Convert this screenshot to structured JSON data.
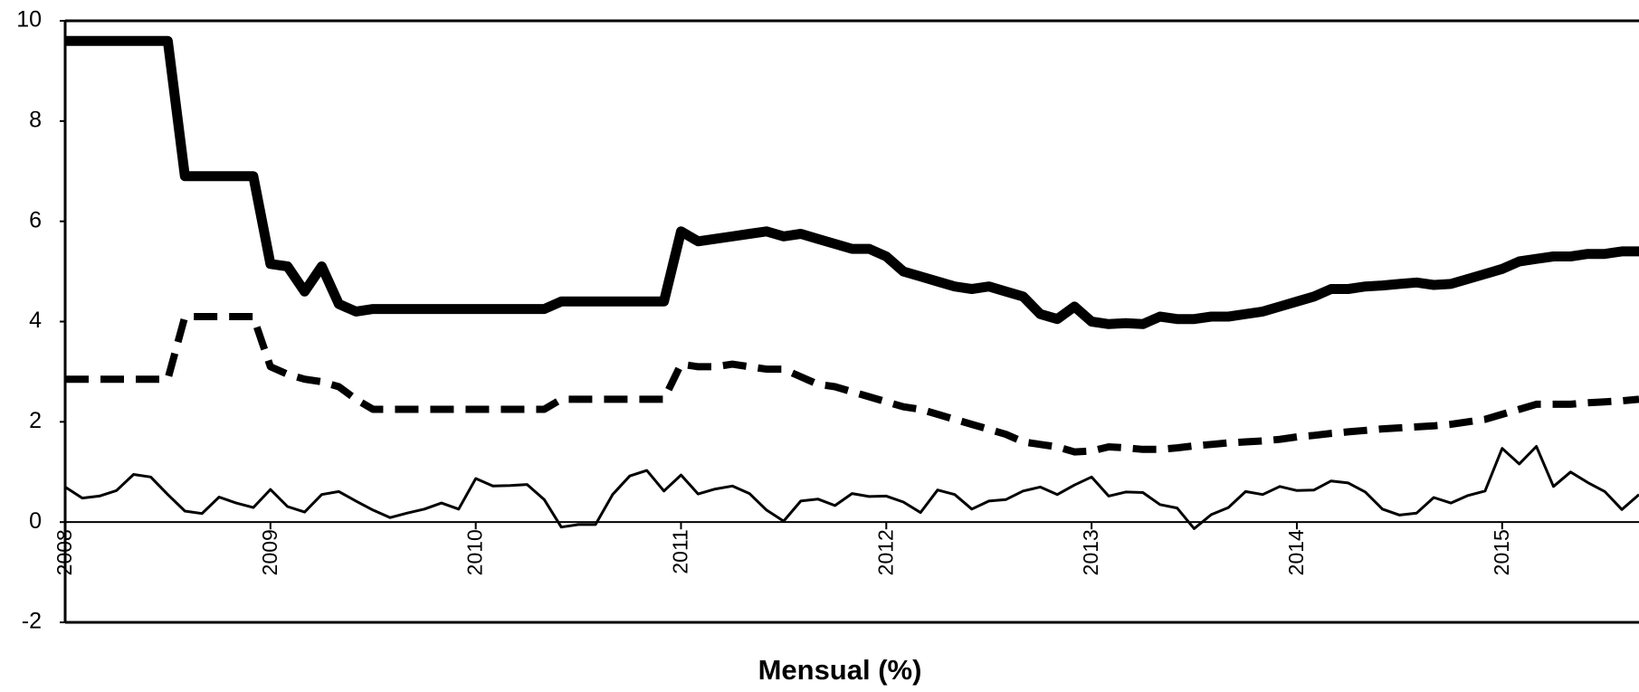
{
  "chart_data": {
    "type": "line",
    "x_label": "Mensual (%)",
    "x": [
      0,
      1,
      2,
      3,
      4,
      5,
      6,
      7,
      8,
      9,
      10,
      11,
      12,
      13,
      14,
      15,
      16,
      17,
      18,
      19,
      20,
      21,
      22,
      23,
      24,
      25,
      26,
      27,
      28,
      29,
      30,
      31,
      32,
      33,
      34,
      35,
      36,
      37,
      38,
      39,
      40,
      41,
      42,
      43,
      44,
      45,
      46,
      47,
      48,
      49,
      50,
      51,
      52,
      53,
      54,
      55,
      56,
      57,
      58,
      59,
      60,
      61,
      62,
      63,
      64,
      65,
      66,
      67,
      68,
      69,
      70,
      71,
      72,
      73,
      74,
      75,
      76,
      77,
      78,
      79,
      80,
      81,
      82,
      83,
      84,
      85,
      86,
      87,
      88,
      89,
      90,
      91,
      92
    ],
    "xlim": [
      0,
      92
    ],
    "xticks": [
      {
        "value": 0,
        "label": "2008"
      },
      {
        "value": 12,
        "label": "2009"
      },
      {
        "value": 24,
        "label": "2010"
      },
      {
        "value": 36,
        "label": "2011"
      },
      {
        "value": 48,
        "label": "2012"
      },
      {
        "value": 60,
        "label": "2013"
      },
      {
        "value": 72,
        "label": "2014"
      },
      {
        "value": 84,
        "label": "2015"
      }
    ],
    "ylim": [
      -2,
      10
    ],
    "yticks": [
      -2,
      0,
      2,
      4,
      6,
      8,
      10
    ],
    "series": [
      {
        "color": "#000000",
        "style": "thick",
        "values": [
          9.6,
          9.6,
          9.6,
          9.6,
          9.6,
          9.6,
          9.6,
          6.9,
          6.9,
          6.9,
          6.9,
          6.9,
          5.15,
          5.1,
          4.6,
          5.1,
          4.35,
          4.2,
          4.25,
          4.25,
          4.25,
          4.25,
          4.25,
          4.25,
          4.25,
          4.25,
          4.25,
          4.25,
          4.25,
          4.4,
          4.4,
          4.4,
          4.4,
          4.4,
          4.4,
          4.4,
          5.8,
          5.6,
          5.65,
          5.7,
          5.75,
          5.8,
          5.7,
          5.75,
          5.65,
          5.55,
          5.45,
          5.45,
          5.3,
          5.0,
          4.9,
          4.8,
          4.7,
          4.65,
          4.7,
          4.6,
          4.5,
          4.15,
          4.05,
          4.3,
          4.0,
          3.95,
          3.97,
          3.95,
          4.1,
          4.05,
          4.05,
          4.1,
          4.1,
          4.15,
          4.2,
          4.3,
          4.4,
          4.5,
          4.65,
          4.65,
          4.7,
          4.72,
          4.75,
          4.78,
          4.73,
          4.75,
          4.85,
          4.95,
          5.05,
          5.2,
          5.25,
          5.3,
          5.3,
          5.35,
          5.35,
          5.4,
          5.4
        ]
      },
      {
        "color": "#000000",
        "style": "dashed",
        "values": [
          2.85,
          2.85,
          2.85,
          2.85,
          2.85,
          2.85,
          2.85,
          4.1,
          4.1,
          4.1,
          4.1,
          4.1,
          3.1,
          2.95,
          2.85,
          2.8,
          2.7,
          2.45,
          2.25,
          2.25,
          2.25,
          2.25,
          2.25,
          2.25,
          2.25,
          2.25,
          2.25,
          2.25,
          2.25,
          2.45,
          2.45,
          2.45,
          2.45,
          2.45,
          2.45,
          2.45,
          3.15,
          3.1,
          3.1,
          3.15,
          3.1,
          3.05,
          3.05,
          2.9,
          2.75,
          2.7,
          2.6,
          2.5,
          2.4,
          2.3,
          2.25,
          2.15,
          2.05,
          1.95,
          1.85,
          1.75,
          1.6,
          1.55,
          1.5,
          1.4,
          1.42,
          1.5,
          1.48,
          1.45,
          1.45,
          1.48,
          1.52,
          1.55,
          1.58,
          1.6,
          1.62,
          1.65,
          1.7,
          1.73,
          1.77,
          1.8,
          1.83,
          1.86,
          1.88,
          1.9,
          1.92,
          1.95,
          2.0,
          2.05,
          2.15,
          2.25,
          2.35,
          2.35,
          2.35,
          2.38,
          2.4,
          2.42,
          2.45
        ]
      },
      {
        "color": "#000000",
        "style": "thin",
        "values": [
          0.7,
          0.48,
          0.52,
          0.63,
          0.95,
          0.9,
          0.55,
          0.22,
          0.17,
          0.5,
          0.38,
          0.29,
          0.65,
          0.31,
          0.2,
          0.55,
          0.61,
          0.42,
          0.24,
          0.09,
          0.18,
          0.26,
          0.38,
          0.26,
          0.87,
          0.72,
          0.73,
          0.75,
          0.45,
          -0.1,
          -0.05,
          -0.05,
          0.55,
          0.92,
          1.03,
          0.62,
          0.94,
          0.56,
          0.66,
          0.72,
          0.57,
          0.24,
          0.02,
          0.42,
          0.46,
          0.33,
          0.57,
          0.51,
          0.52,
          0.4,
          0.19,
          0.64,
          0.55,
          0.26,
          0.42,
          0.45,
          0.62,
          0.7,
          0.55,
          0.74,
          0.9,
          0.52,
          0.6,
          0.59,
          0.35,
          0.28,
          -0.13,
          0.15,
          0.29,
          0.61,
          0.55,
          0.71,
          0.63,
          0.64,
          0.82,
          0.78,
          0.6,
          0.26,
          0.14,
          0.18,
          0.49,
          0.38,
          0.53,
          0.62,
          1.47,
          1.16,
          1.51,
          0.71,
          1.0,
          0.79,
          0.61,
          0.25,
          0.55
        ]
      }
    ]
  }
}
